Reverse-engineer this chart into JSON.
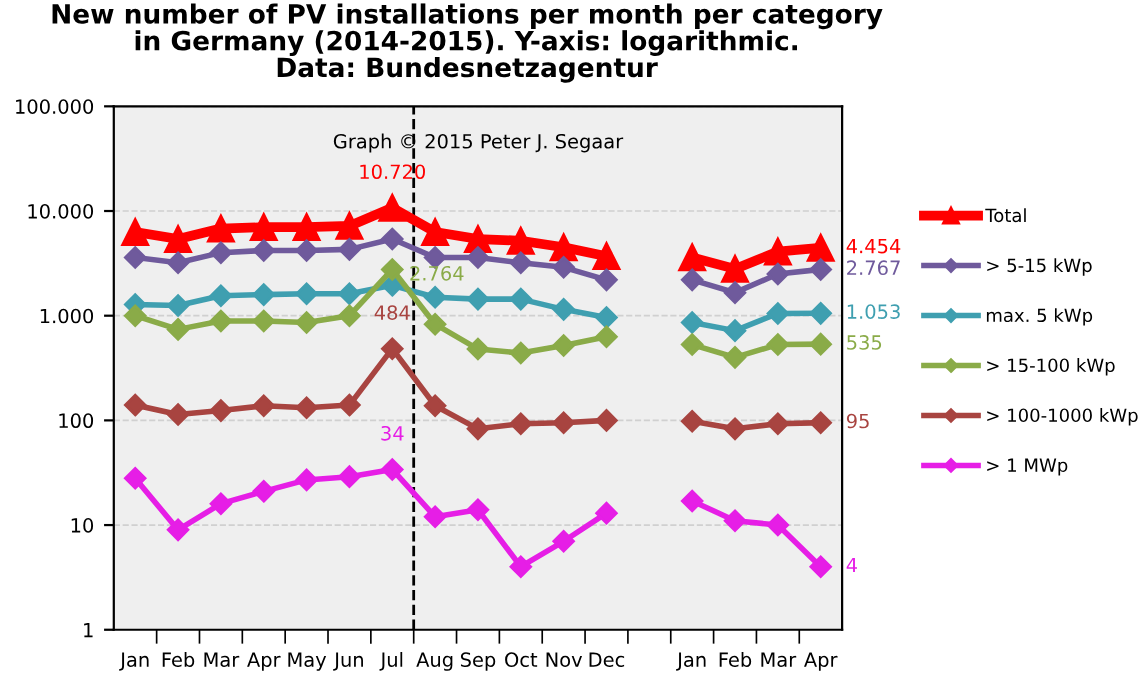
{
  "chart_data": {
    "type": "line",
    "title": "New number of PV installations per month per category\nin Germany (2014-2015). Y-axis: logarithmic.\nData: Bundesnetzagentur",
    "categories": [
      "Jan",
      "Feb",
      "Mar",
      "Apr",
      "May",
      "Jun",
      "Jul",
      "Aug",
      "Sep",
      "Oct",
      "Nov",
      "Dec",
      null,
      "Jan",
      "Feb",
      "Mar",
      "Apr"
    ],
    "series": [
      {
        "name": "Total",
        "color": "#ff0000",
        "marker": "triangle",
        "values": [
          6300,
          5400,
          6800,
          7000,
          7000,
          7200,
          10720,
          6300,
          5400,
          5200,
          4500,
          3700,
          null,
          3600,
          2800,
          4100,
          4454
        ],
        "value_labels": [
          null,
          null,
          null,
          null,
          null,
          null,
          "10.720",
          null,
          null,
          null,
          null,
          null,
          null,
          null,
          null,
          null,
          "4.454"
        ]
      },
      {
        "name": "> 5-15 kWp",
        "color": "#6f5a9c",
        "marker": "diamond",
        "values": [
          3600,
          3200,
          4000,
          4200,
          4200,
          4300,
          5400,
          3600,
          3600,
          3200,
          2900,
          2200,
          null,
          2200,
          1660,
          2500,
          2767
        ],
        "value_labels": [
          null,
          null,
          null,
          null,
          null,
          null,
          null,
          null,
          null,
          null,
          null,
          null,
          null,
          null,
          null,
          null,
          "2.767"
        ]
      },
      {
        "name": "max. 5 kWp",
        "color": "#3f9fb0",
        "marker": "diamond",
        "values": [
          1280,
          1250,
          1550,
          1590,
          1620,
          1620,
          1950,
          1500,
          1440,
          1440,
          1150,
          960,
          null,
          860,
          720,
          1050,
          1053
        ],
        "value_labels": [
          null,
          null,
          null,
          null,
          null,
          null,
          null,
          null,
          null,
          null,
          null,
          null,
          null,
          null,
          null,
          null,
          "1.053"
        ]
      },
      {
        "name": "> 15-100 kWp",
        "color": "#8aab48",
        "marker": "diamond",
        "values": [
          1000,
          740,
          890,
          890,
          860,
          1000,
          2764,
          830,
          480,
          440,
          520,
          630,
          null,
          530,
          400,
          530,
          535
        ],
        "value_labels": [
          null,
          null,
          null,
          null,
          null,
          null,
          "2.764",
          null,
          null,
          null,
          null,
          null,
          null,
          null,
          null,
          null,
          "535"
        ]
      },
      {
        "name": "> 100-1000 kWp",
        "color": "#a84440",
        "marker": "diamond",
        "values": [
          140,
          114,
          124,
          138,
          132,
          140,
          484,
          138,
          83,
          93,
          95,
          100,
          null,
          98,
          83,
          93,
          95
        ],
        "value_labels": [
          null,
          null,
          null,
          null,
          null,
          null,
          "484",
          null,
          null,
          null,
          null,
          null,
          null,
          null,
          null,
          null,
          "95"
        ]
      },
      {
        "name": "> 1 MWp",
        "color": "#e61ee6",
        "marker": "diamond",
        "values": [
          28,
          9,
          16,
          21,
          27,
          29,
          34,
          12,
          14,
          4,
          7,
          13,
          null,
          17,
          11,
          10,
          4
        ],
        "value_labels": [
          null,
          null,
          null,
          null,
          null,
          null,
          "34",
          null,
          null,
          null,
          null,
          null,
          null,
          null,
          null,
          null,
          "4"
        ]
      }
    ],
    "log": "y",
    "ylim": [
      1,
      100000
    ],
    "yticks": [
      1,
      10,
      100,
      {
        "value": 1000,
        "label": "1.000"
      },
      {
        "value": 10000,
        "label": "10.000"
      },
      {
        "value": 100000,
        "label": "100.000"
      }
    ],
    "grid": "y",
    "legend": "right",
    "ref_lines": [
      {
        "axis": "x",
        "value": "Jul",
        "color": "#000000",
        "line_style": "dashed"
      }
    ],
    "annotations": [
      "Graph © 2015 Peter J. Segaar"
    ]
  }
}
